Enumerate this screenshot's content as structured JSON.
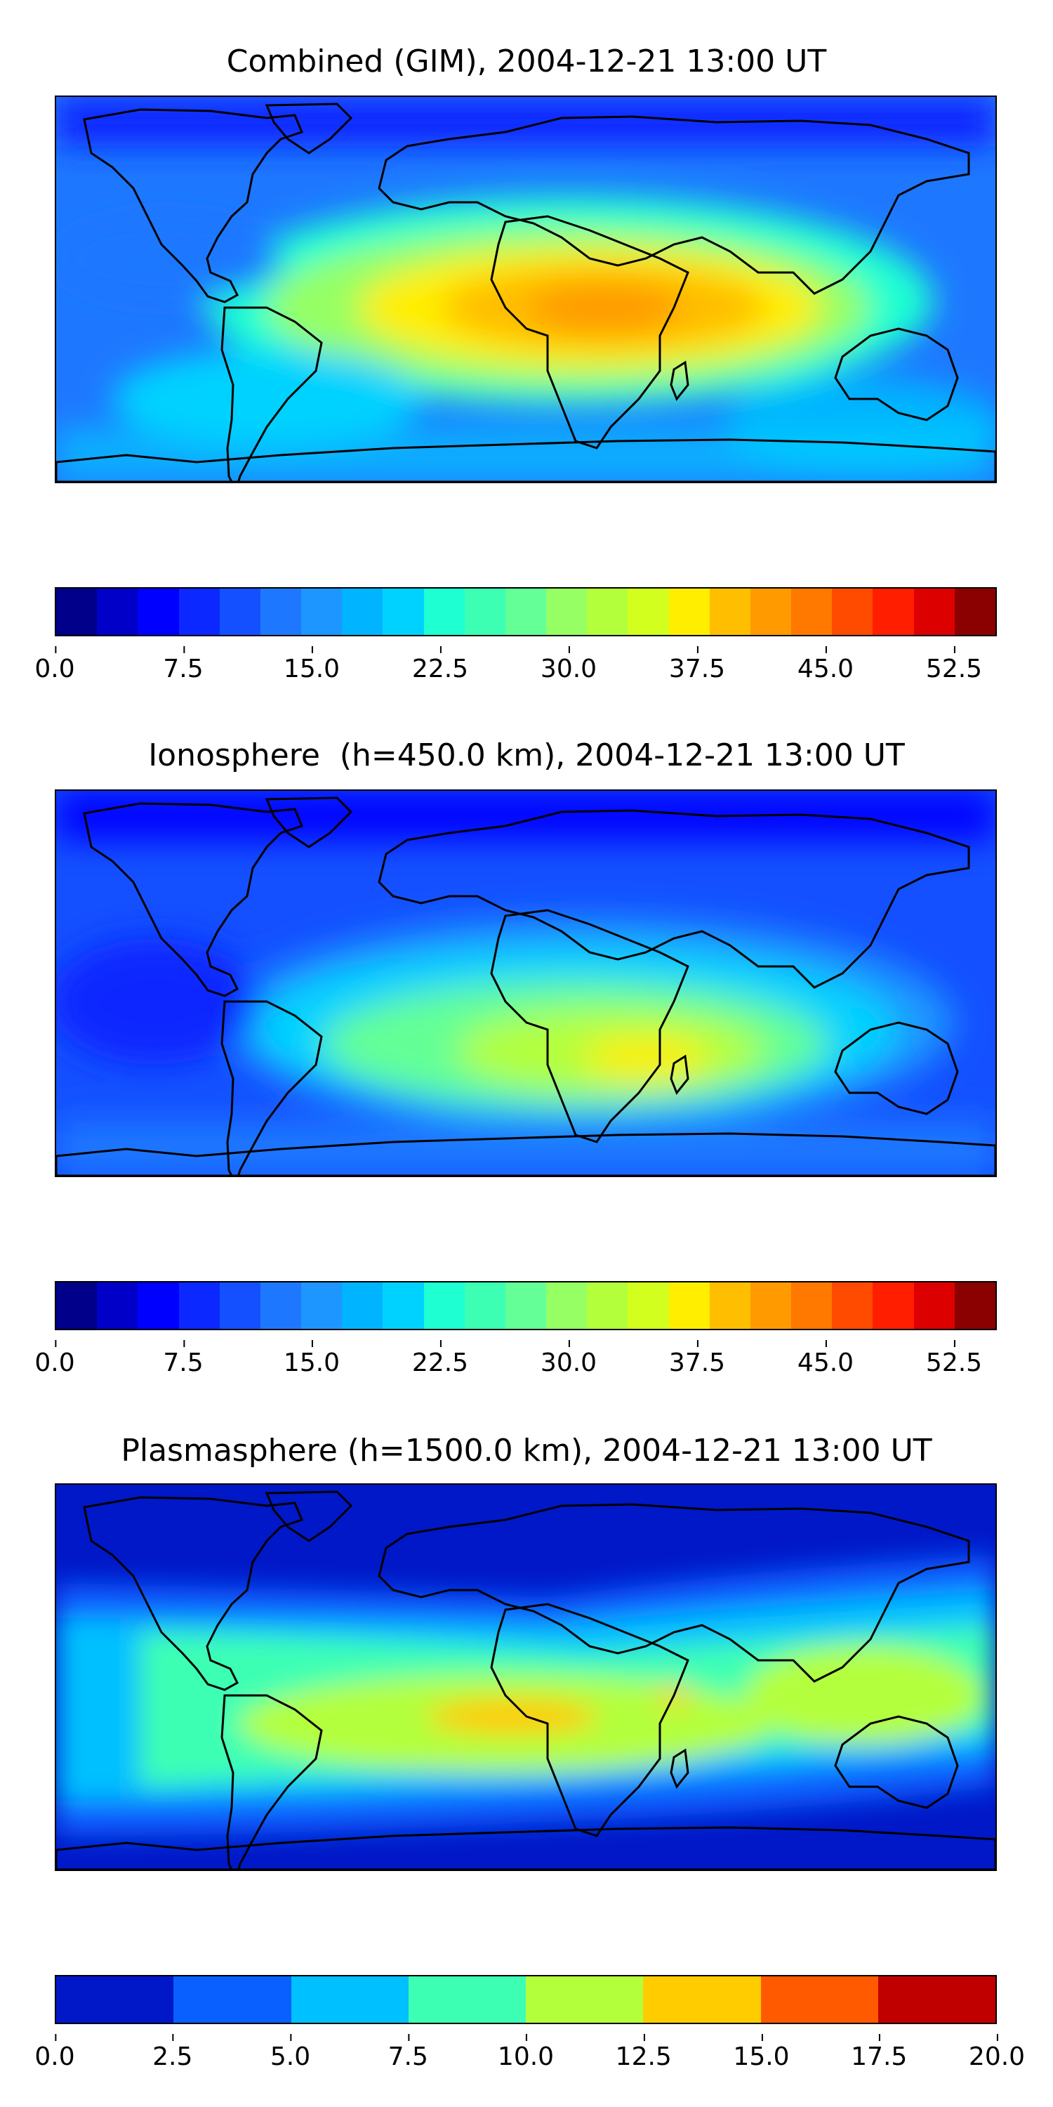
{
  "figure": {
    "panels": [
      {
        "title": "Combined (GIM), 2004-12-21 13:00 UT",
        "colorbar": {
          "colors": [
            "#00008b",
            "#0000c8",
            "#0000ff",
            "#0a28ff",
            "#1450ff",
            "#1e78ff",
            "#1e96ff",
            "#00b4ff",
            "#00d2ff",
            "#1effd2",
            "#3cffb4",
            "#64ff96",
            "#96ff64",
            "#b4ff3c",
            "#d2ff1e",
            "#ffee00",
            "#ffbe00",
            "#ff9b00",
            "#ff7800",
            "#ff4b00",
            "#ff1e00",
            "#dc0000",
            "#8b0000"
          ],
          "ticks": [
            "0.0",
            "7.5",
            "15.0",
            "22.5",
            "30.0",
            "37.5",
            "45.0",
            "52.5"
          ]
        }
      },
      {
        "title": "Ionosphere  (h=450.0 km), 2004-12-21 13:00 UT",
        "colorbar": {
          "colors": [
            "#00008b",
            "#0000c8",
            "#0000ff",
            "#0a28ff",
            "#1450ff",
            "#1e78ff",
            "#1e96ff",
            "#00b4ff",
            "#00d2ff",
            "#1effd2",
            "#3cffb4",
            "#64ff96",
            "#96ff64",
            "#b4ff3c",
            "#d2ff1e",
            "#ffee00",
            "#ffbe00",
            "#ff9b00",
            "#ff7800",
            "#ff4b00",
            "#ff1e00",
            "#dc0000",
            "#8b0000"
          ],
          "ticks": [
            "0.0",
            "7.5",
            "15.0",
            "22.5",
            "30.0",
            "37.5",
            "45.0",
            "52.5"
          ]
        }
      },
      {
        "title": "Plasmasphere (h=1500.0 km), 2004-12-21 13:00 UT",
        "colorbar": {
          "colors": [
            "#0018c8",
            "#0a60ff",
            "#00c0ff",
            "#3cffb4",
            "#b4ff3c",
            "#ffcc00",
            "#ff5a00",
            "#c00000"
          ],
          "ticks": [
            "0.0",
            "2.5",
            "5.0",
            "7.5",
            "10.0",
            "12.5",
            "15.0",
            "17.5",
            "20.0"
          ]
        }
      }
    ]
  },
  "chart_data": [
    {
      "type": "heatmap",
      "title": "Combined (GIM), 2004-12-21 13:00 UT",
      "colorbar_range": [
        0.0,
        55.0
      ],
      "colorbar_ticks": [
        0.0,
        7.5,
        15.0,
        22.5,
        30.0,
        37.5,
        45.0,
        52.5
      ],
      "colorbar_step": 2.5,
      "field_peak_approx": 45.0,
      "field_peak_location": "southern Africa / equatorial Atlantic",
      "field_min_approx": 2.5,
      "field_min_location": "high northern latitudes"
    },
    {
      "type": "heatmap",
      "title": "Ionosphere  (h=450.0 km), 2004-12-21 13:00 UT",
      "colorbar_range": [
        0.0,
        55.0
      ],
      "colorbar_ticks": [
        0.0,
        7.5,
        15.0,
        22.5,
        30.0,
        37.5,
        45.0,
        52.5
      ],
      "colorbar_step": 2.5,
      "field_peak_approx": 37.5,
      "field_peak_location": "southern Africa",
      "field_min_approx": 5.0,
      "field_min_location": "high northern latitudes / Pacific"
    },
    {
      "type": "heatmap",
      "title": "Plasmasphere (h=1500.0 km), 2004-12-21 13:00 UT",
      "colorbar_range": [
        0.0,
        20.0
      ],
      "colorbar_ticks": [
        0.0,
        2.5,
        5.0,
        7.5,
        10.0,
        12.5,
        15.0,
        17.5,
        20.0
      ],
      "colorbar_step": 2.5,
      "field_peak_approx": 15.0,
      "field_peak_location": "equatorial Atlantic / Brazil",
      "field_min_approx": 0.0,
      "field_min_location": "polar regions"
    }
  ]
}
